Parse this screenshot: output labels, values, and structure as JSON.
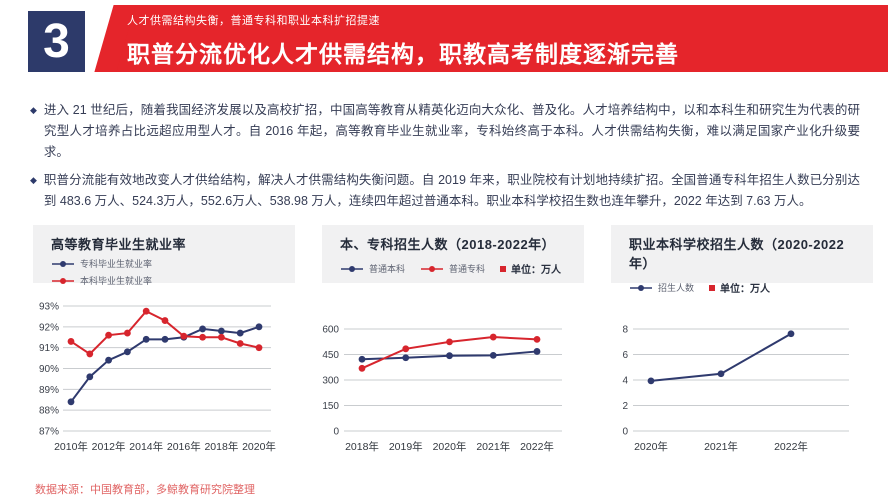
{
  "bullet_marker": "◆",
  "header": {
    "number": "3",
    "subtitle": "人才供需结构失衡，普通专科和职业本科扩招提速",
    "title": "职普分流优化人才供需结构，职教高考制度逐渐完善",
    "banner_color": "#e5252b",
    "number_box_color": "#2d3a6a"
  },
  "bullets": [
    "进入 21 世纪后，随着我国经济发展以及高校扩招，中国高等教育从精英化迈向大众化、普及化。人才培养结构中，以和本科生和研究生为代表的研究型人才培养占比远超应用型人才。自 2016 年起，高等教育毕业生就业率，专科始终高于本科。人才供需结构失衡，难以满足国家产业化升级要求。",
    "职普分流能有效地改变人才供给结构，解决人才供需结构失衡问题。自 2019 年来，职业院校有计划地持续扩招。全国普通专科年招生人数已分别达到 483.6 万人、524.3万人，552.6万人、538.98 万人，连续四年超过普通本科。职业本科学校招生数也连年攀升，2022 年达到 7.63 万人。"
  ],
  "footer": {
    "source": "数据来源：中国教育部，多鲸教育研究院整理"
  },
  "chart_data": [
    {
      "type": "line",
      "title": "高等教育毕业生就业率",
      "legend_layout": "stacked",
      "categories": [
        "2010年",
        "2011年",
        "2012年",
        "2013年",
        "2014年",
        "2015年",
        "2016年",
        "2017年",
        "2018年",
        "2019年",
        "2020年"
      ],
      "x_ticks": [
        {
          "i": 0,
          "label": "2010年"
        },
        {
          "i": 2,
          "label": "2012年"
        },
        {
          "i": 4,
          "label": "2014年"
        },
        {
          "i": 6,
          "label": "2016年"
        },
        {
          "i": 8,
          "label": "2018年"
        },
        {
          "i": 10,
          "label": "2020年"
        }
      ],
      "y_ticks": [
        93,
        92,
        91,
        90,
        89,
        88,
        87
      ],
      "y_tick_labels": [
        "93%",
        "92%",
        "91%",
        "90%",
        "89%",
        "88%",
        "87%"
      ],
      "ylim": [
        87,
        93
      ],
      "series": [
        {
          "name": "专科毕业生就业率",
          "color": "#2f3a6e",
          "values": [
            88.4,
            89.6,
            90.4,
            90.8,
            91.4,
            91.4,
            91.5,
            91.9,
            91.8,
            91.7,
            92.0
          ]
        },
        {
          "name": "本科毕业生就业率",
          "color": "#d7252d",
          "values": [
            91.3,
            90.7,
            91.6,
            91.7,
            92.75,
            92.3,
            91.55,
            91.5,
            91.5,
            91.2,
            91.0
          ]
        }
      ],
      "unit_label": null,
      "grid": true,
      "gridline_color": "#c9cccf"
    },
    {
      "type": "line",
      "title": "本、专科招生人数（2018-2022年）",
      "legend_layout": "row",
      "categories": [
        "2018年",
        "2019年",
        "2020年",
        "2021年",
        "2022年"
      ],
      "x_ticks": [
        {
          "i": 0,
          "label": "2018年"
        },
        {
          "i": 1,
          "label": "2019年"
        },
        {
          "i": 2,
          "label": "2020年"
        },
        {
          "i": 3,
          "label": "2021年"
        },
        {
          "i": 4,
          "label": "2022年"
        }
      ],
      "y_ticks": [
        600,
        450,
        300,
        150,
        0
      ],
      "y_tick_labels": [
        "600",
        "450",
        "300",
        "150",
        "0"
      ],
      "ylim": [
        0,
        600
      ],
      "series": [
        {
          "name": "普通本科",
          "color": "#2f3a6e",
          "values": [
            422,
            431,
            443,
            445,
            468
          ]
        },
        {
          "name": "普通专科",
          "color": "#d7252d",
          "values": [
            368.8,
            483.6,
            524.3,
            552.6,
            538.98
          ]
        }
      ],
      "unit_label": "单位：万人",
      "unit_color": "#d7252d",
      "grid": true,
      "gridline_color": "#c9cccf"
    },
    {
      "type": "line",
      "title": "职业本科学校招生人数（2020-2022年）",
      "legend_layout": "row",
      "categories": [
        "2020年",
        "2021年",
        "2022年"
      ],
      "x_ticks": [
        {
          "i": 0,
          "label": "2020年"
        },
        {
          "i": 1,
          "label": "2021年"
        },
        {
          "i": 2,
          "label": "2022年"
        }
      ],
      "y_ticks": [
        8,
        6,
        4,
        2,
        0
      ],
      "y_tick_labels": [
        "8",
        "6",
        "4",
        "2",
        "0"
      ],
      "ylim": [
        0,
        8
      ],
      "series": [
        {
          "name": "招生人数",
          "color": "#2f3a6e",
          "values": [
            3.93,
            4.49,
            7.63
          ]
        }
      ],
      "unit_label": "单位：万人",
      "unit_color": "#d7252d",
      "grid": true,
      "gridline_color": "#c9cccf"
    }
  ]
}
